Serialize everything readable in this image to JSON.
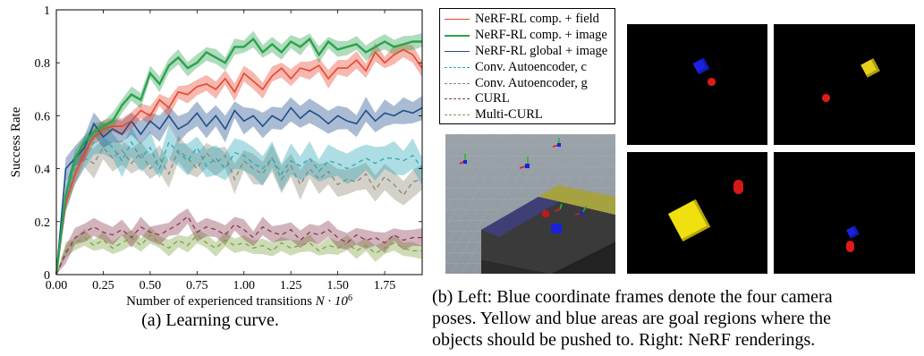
{
  "chart_data": {
    "type": "line",
    "title": "",
    "xlabel_main": "Number of experienced transitions ",
    "xlabel_math": "N · 10",
    "xlabel_exp": "6",
    "ylabel": "Success Rate",
    "xlim": [
      0,
      1.95
    ],
    "ylim": [
      0,
      1
    ],
    "xticks": [
      0,
      0.25,
      0.5,
      0.75,
      1.0,
      1.25,
      1.5,
      1.75
    ],
    "xtick_labels": [
      "0.00",
      "0.25",
      "0.50",
      "0.75",
      "1.00",
      "1.25",
      "1.50",
      "1.75"
    ],
    "yticks": [
      0,
      0.2,
      0.4,
      0.6,
      0.8,
      1
    ],
    "ytick_labels": [
      "0",
      "0.2",
      "0.4",
      "0.6",
      "0.8",
      "1"
    ],
    "grid": false,
    "legend_placement": "top-right, outside plot",
    "x": [
      0,
      0.05,
      0.1,
      0.15,
      0.2,
      0.25,
      0.3,
      0.35,
      0.4,
      0.45,
      0.5,
      0.55,
      0.6,
      0.65,
      0.7,
      0.75,
      0.8,
      0.85,
      0.9,
      0.95,
      1.0,
      1.05,
      1.1,
      1.15,
      1.2,
      1.25,
      1.3,
      1.35,
      1.4,
      1.45,
      1.5,
      1.55,
      1.6,
      1.65,
      1.7,
      1.75,
      1.8,
      1.85,
      1.9,
      1.95
    ],
    "series": [
      {
        "name": "NeRF-RL comp. + field",
        "color": "#e8452e",
        "dash": "solid",
        "width": 1.6,
        "values": [
          0.0,
          0.27,
          0.38,
          0.46,
          0.52,
          0.55,
          0.56,
          0.56,
          0.58,
          0.62,
          0.6,
          0.66,
          0.63,
          0.69,
          0.68,
          0.71,
          0.72,
          0.7,
          0.74,
          0.69,
          0.76,
          0.73,
          0.7,
          0.75,
          0.78,
          0.74,
          0.78,
          0.77,
          0.79,
          0.74,
          0.78,
          0.78,
          0.81,
          0.77,
          0.84,
          0.8,
          0.83,
          0.85,
          0.83,
          0.78
        ],
        "band": 0.028
      },
      {
        "name": "NeRF-RL comp. + image",
        "color": "#2ca24e",
        "dash": "solid",
        "width": 2.4,
        "values": [
          0.0,
          0.3,
          0.44,
          0.5,
          0.54,
          0.56,
          0.58,
          0.64,
          0.68,
          0.66,
          0.76,
          0.72,
          0.79,
          0.82,
          0.78,
          0.8,
          0.84,
          0.82,
          0.8,
          0.86,
          0.86,
          0.89,
          0.84,
          0.87,
          0.84,
          0.88,
          0.86,
          0.89,
          0.83,
          0.88,
          0.85,
          0.86,
          0.87,
          0.84,
          0.86,
          0.88,
          0.86,
          0.87,
          0.88,
          0.88
        ],
        "band": 0.025
      },
      {
        "name": "NeRF-RL global + image",
        "color": "#1f4e8c",
        "dash": "solid",
        "width": 1.6,
        "values": [
          0.0,
          0.4,
          0.44,
          0.48,
          0.57,
          0.52,
          0.55,
          0.53,
          0.58,
          0.53,
          0.58,
          0.55,
          0.6,
          0.55,
          0.57,
          0.61,
          0.56,
          0.6,
          0.55,
          0.62,
          0.58,
          0.6,
          0.56,
          0.6,
          0.58,
          0.63,
          0.59,
          0.62,
          0.6,
          0.57,
          0.6,
          0.58,
          0.57,
          0.62,
          0.58,
          0.61,
          0.6,
          0.62,
          0.61,
          0.63
        ],
        "band": 0.04
      },
      {
        "name": "Conv. Autoencoder, c",
        "color": "#2aa7b8",
        "dash": "5,4",
        "width": 1.3,
        "values": [
          0.0,
          0.28,
          0.4,
          0.46,
          0.5,
          0.52,
          0.48,
          0.43,
          0.5,
          0.44,
          0.48,
          0.4,
          0.5,
          0.46,
          0.43,
          0.48,
          0.41,
          0.44,
          0.4,
          0.46,
          0.45,
          0.42,
          0.4,
          0.44,
          0.38,
          0.43,
          0.41,
          0.44,
          0.39,
          0.43,
          0.42,
          0.4,
          0.42,
          0.44,
          0.42,
          0.44,
          0.44,
          0.43,
          0.45,
          0.4
        ],
        "band": 0.05
      },
      {
        "name": "Conv. Autoencoder, g",
        "color": "#8c8574",
        "dash": "5,4",
        "width": 1.3,
        "values": [
          0.0,
          0.29,
          0.4,
          0.44,
          0.42,
          0.48,
          0.44,
          0.47,
          0.42,
          0.46,
          0.4,
          0.44,
          0.38,
          0.47,
          0.44,
          0.4,
          0.46,
          0.42,
          0.45,
          0.36,
          0.43,
          0.4,
          0.38,
          0.44,
          0.36,
          0.41,
          0.34,
          0.4,
          0.36,
          0.39,
          0.34,
          0.36,
          0.35,
          0.38,
          0.32,
          0.37,
          0.34,
          0.3,
          0.35,
          0.36
        ],
        "band": 0.045
      },
      {
        "name": "CURL",
        "color": "#8a3a52",
        "dash": "5,4",
        "width": 1.3,
        "values": [
          0.0,
          0.08,
          0.14,
          0.16,
          0.18,
          0.16,
          0.15,
          0.17,
          0.14,
          0.18,
          0.16,
          0.15,
          0.17,
          0.19,
          0.22,
          0.16,
          0.18,
          0.17,
          0.15,
          0.19,
          0.17,
          0.14,
          0.18,
          0.16,
          0.15,
          0.17,
          0.13,
          0.16,
          0.15,
          0.17,
          0.14,
          0.12,
          0.15,
          0.13,
          0.14,
          0.12,
          0.15,
          0.13,
          0.14,
          0.14
        ],
        "band": 0.03
      },
      {
        "name": "Multi-CURL",
        "color": "#7ba23f",
        "dash": "5,4",
        "width": 1.3,
        "values": [
          0.0,
          0.09,
          0.12,
          0.14,
          0.11,
          0.13,
          0.1,
          0.12,
          0.14,
          0.11,
          0.15,
          0.12,
          0.1,
          0.13,
          0.11,
          0.15,
          0.12,
          0.1,
          0.13,
          0.11,
          0.12,
          0.1,
          0.11,
          0.09,
          0.12,
          0.1,
          0.11,
          0.12,
          0.09,
          0.11,
          0.1,
          0.12,
          0.09,
          0.11,
          0.08,
          0.1,
          0.12,
          0.1,
          0.09,
          0.09
        ],
        "band": 0.025
      }
    ]
  },
  "captions": {
    "a": "(a) Learning curve.",
    "b_lines": [
      "(b) Left: Blue coordinate frames denote the four camera",
      "poses. Yellow and blue areas are goal regions where the",
      "objects should be pushed to. Right: NeRF renderings."
    ]
  },
  "renderings": [
    {
      "name": "rendering-top-left",
      "objects": [
        {
          "type": "cube",
          "color": "#1a22e0",
          "u": 0.53,
          "v": 0.35,
          "size": 0.09
        },
        {
          "type": "sphere",
          "color": "#e01a1a",
          "u": 0.6,
          "v": 0.48,
          "size": 0.055
        }
      ]
    },
    {
      "name": "rendering-top-right",
      "objects": [
        {
          "type": "cube",
          "color": "#e6d21a",
          "u": 0.68,
          "v": 0.36,
          "size": 0.1
        },
        {
          "type": "sphere",
          "color": "#e01a1a",
          "u": 0.37,
          "v": 0.61,
          "size": 0.055
        }
      ]
    },
    {
      "name": "rendering-bottom-left",
      "objects": [
        {
          "type": "cube",
          "color": "#f0e010",
          "u": 0.44,
          "v": 0.56,
          "size": 0.22
        },
        {
          "type": "cylinder",
          "color": "#d41818",
          "u": 0.79,
          "v": 0.27,
          "size": 0.07
        }
      ]
    },
    {
      "name": "rendering-bottom-right",
      "objects": [
        {
          "type": "cube",
          "color": "#1a22e0",
          "u": 0.56,
          "v": 0.66,
          "size": 0.07
        },
        {
          "type": "cylinder",
          "color": "#e01a1a",
          "u": 0.54,
          "v": 0.76,
          "size": 0.06
        }
      ]
    }
  ]
}
